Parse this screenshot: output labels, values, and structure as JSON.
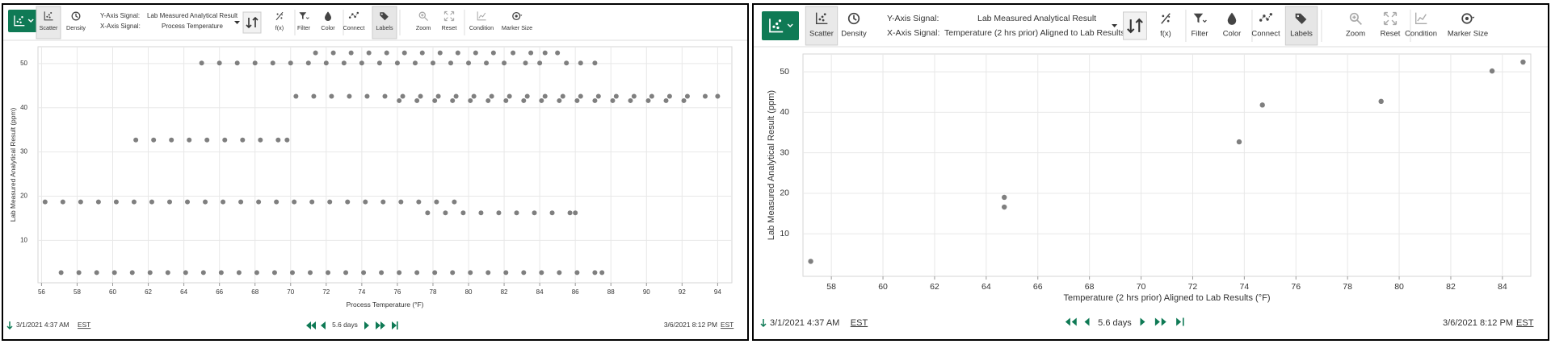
{
  "panels": [
    {
      "toolbar": {
        "buttons": [
          "Scatter",
          "Density"
        ],
        "y_axis_label": "Y-Axis Signal:",
        "y_signal": "Lab Measured Analytical Result",
        "x_axis_label": "X-Axis Signal:",
        "x_signal": "Process Temperature",
        "tools": [
          "f(x)",
          "Filter",
          "Color",
          "Connect",
          "Labels",
          "Zoom",
          "Reset",
          "Condition",
          "Marker Size"
        ]
      },
      "footer": {
        "start": "3/1/2021 4:37 AM",
        "start_zone": "EST",
        "span": "5.6 days",
        "end": "3/6/2021 8:12 PM",
        "end_zone": "EST"
      }
    },
    {
      "toolbar": {
        "buttons": [
          "Scatter",
          "Density"
        ],
        "y_axis_label": "Y-Axis Signal:",
        "y_signal": "Lab Measured Analytical Result",
        "x_axis_label": "X-Axis Signal:",
        "x_signal": "Temperature (2 hrs prior) Aligned to Lab Results",
        "tools": [
          "f(x)",
          "Filter",
          "Color",
          "Connect",
          "Labels",
          "Zoom",
          "Reset",
          "Condition",
          "Marker Size"
        ]
      },
      "footer": {
        "start": "3/1/2021 4:37 AM",
        "start_zone": "EST",
        "span": "5.6 days",
        "end": "3/6/2021 8:12 PM",
        "end_zone": "EST"
      }
    }
  ],
  "chart_data": [
    {
      "type": "scatter",
      "xlabel": "Process Temperature (°F)",
      "ylabel": "Lab Measured Analytical Result (ppm)",
      "xlabel_color": "#d9822b",
      "ylabel_color": "#c0449a",
      "color": "#7f7f7f",
      "grid": true,
      "xlim": [
        55.8,
        94.8
      ],
      "ylim": [
        0.4,
        53.8
      ],
      "xticks": [
        56,
        58,
        60,
        62,
        64,
        66,
        68,
        70,
        72,
        74,
        76,
        78,
        80,
        82,
        84,
        86,
        88,
        90,
        92,
        94
      ],
      "yticks": [
        10,
        20,
        30,
        40,
        50
      ],
      "series": [
        {
          "x": [
            71.4,
            72.4,
            73.4,
            74.4,
            75.4,
            76.4,
            77.4,
            78.4,
            79.4,
            80.4,
            81.4,
            82.5,
            83.5,
            84.3,
            85.0
          ],
          "values": [
            52.4,
            52.4,
            52.4,
            52.4,
            52.4,
            52.4,
            52.4,
            52.4,
            52.4,
            52.4,
            52.4,
            52.4,
            52.4,
            52.4,
            52.4
          ]
        },
        {
          "x": [
            65.0,
            66.0,
            67.0,
            68.0,
            69.0,
            70.0,
            71.0,
            72.0,
            73.0,
            74.0,
            75.0,
            76.0,
            77.0,
            78.0,
            79.0,
            80.0,
            81.0,
            82.0,
            83.2,
            84.0,
            85.5,
            86.3,
            87.1
          ],
          "values": [
            50.1,
            50.1,
            50.1,
            50.1,
            50.1,
            50.1,
            50.1,
            50.1,
            50.1,
            50.1,
            50.1,
            50.1,
            50.1,
            50.1,
            50.1,
            50.1,
            50.1,
            50.1,
            50.1,
            50.1,
            50.1,
            50.1,
            50.1
          ]
        },
        {
          "x": [
            70.3,
            71.3,
            72.3,
            73.3,
            74.3,
            75.3,
            76.3,
            77.3,
            78.3,
            79.3,
            80.3,
            81.3,
            82.3,
            83.3,
            84.3,
            85.3,
            86.3,
            87.3,
            88.3,
            89.3,
            90.3,
            91.3,
            92.3,
            93.3,
            94.0
          ],
          "values": [
            42.6,
            42.6,
            42.6,
            42.6,
            42.6,
            42.6,
            42.6,
            42.6,
            42.6,
            42.6,
            42.6,
            42.6,
            42.6,
            42.6,
            42.6,
            42.6,
            42.6,
            42.6,
            42.6,
            42.6,
            42.6,
            42.6,
            42.6,
            42.6,
            42.6
          ]
        },
        {
          "x": [
            76.1,
            77.1,
            78.1,
            79.1,
            80.1,
            81.1,
            82.1,
            83.1,
            84.1,
            85.1,
            86.1,
            87.1,
            88.1,
            89.1,
            90.1,
            91.1,
            92.1
          ],
          "values": [
            41.6,
            41.6,
            41.6,
            41.6,
            41.6,
            41.6,
            41.6,
            41.6,
            41.6,
            41.6,
            41.6,
            41.6,
            41.6,
            41.6,
            41.6,
            41.6,
            41.6
          ]
        },
        {
          "x": [
            61.3,
            62.3,
            63.3,
            64.3,
            65.3,
            66.3,
            67.3,
            68.3,
            69.3,
            69.8
          ],
          "values": [
            32.7,
            32.7,
            32.7,
            32.7,
            32.7,
            32.7,
            32.7,
            32.7,
            32.7,
            32.7
          ]
        },
        {
          "x": [
            56.2,
            57.2,
            58.2,
            59.2,
            60.2,
            61.2,
            62.2,
            63.2,
            64.2,
            65.2,
            66.2,
            67.2,
            68.2,
            69.2,
            70.2,
            71.2,
            72.2,
            73.2,
            74.2,
            75.2,
            76.2,
            77.2,
            78.2,
            79.2
          ],
          "values": [
            18.7,
            18.7,
            18.7,
            18.7,
            18.7,
            18.7,
            18.7,
            18.7,
            18.7,
            18.7,
            18.7,
            18.7,
            18.7,
            18.7,
            18.7,
            18.7,
            18.7,
            18.7,
            18.7,
            18.7,
            18.7,
            18.7,
            18.7,
            18.7
          ]
        },
        {
          "x": [
            77.7,
            78.7,
            79.7,
            80.7,
            81.7,
            82.7,
            83.7,
            84.7,
            85.7,
            86.0
          ],
          "values": [
            16.2,
            16.2,
            16.2,
            16.2,
            16.2,
            16.2,
            16.2,
            16.2,
            16.2,
            16.2
          ]
        },
        {
          "x": [
            57.1,
            58.1,
            59.1,
            60.1,
            61.1,
            62.1,
            63.1,
            64.1,
            65.1,
            66.1,
            67.1,
            68.1,
            69.1,
            70.1,
            71.1,
            72.1,
            73.1,
            74.1,
            75.1,
            76.1,
            77.1,
            78.1,
            79.1,
            80.1,
            81.1,
            82.1,
            83.1,
            84.1,
            85.1,
            86.1,
            87.1,
            87.5
          ],
          "values": [
            2.7,
            2.7,
            2.7,
            2.7,
            2.7,
            2.7,
            2.7,
            2.7,
            2.7,
            2.7,
            2.7,
            2.7,
            2.7,
            2.7,
            2.7,
            2.7,
            2.7,
            2.7,
            2.7,
            2.7,
            2.7,
            2.7,
            2.7,
            2.7,
            2.7,
            2.7,
            2.7,
            2.7,
            2.7,
            2.7,
            2.7,
            2.7
          ]
        }
      ]
    },
    {
      "type": "scatter",
      "xlabel": "Temperature (2 hrs prior) Aligned to Lab Results (°F)",
      "ylabel": "Lab Measured Analytical Result (ppm)",
      "xlabel_color": "#5aa645",
      "ylabel_color": "#a040a8",
      "color": "#7f7f7f",
      "grid": true,
      "xlim": [
        56.9,
        85.1
      ],
      "ylim": [
        -0.5,
        54.4
      ],
      "xticks": [
        58,
        60,
        62,
        64,
        66,
        68,
        70,
        72,
        74,
        76,
        78,
        80,
        82,
        84
      ],
      "yticks": [
        10,
        20,
        30,
        40,
        50
      ],
      "series": [
        {
          "x": [
            57.2,
            64.7,
            64.7,
            73.8,
            74.7,
            79.3,
            83.6,
            84.8
          ],
          "values": [
            3.2,
            19.0,
            16.6,
            32.7,
            41.8,
            42.7,
            50.2,
            52.4
          ]
        }
      ]
    }
  ]
}
